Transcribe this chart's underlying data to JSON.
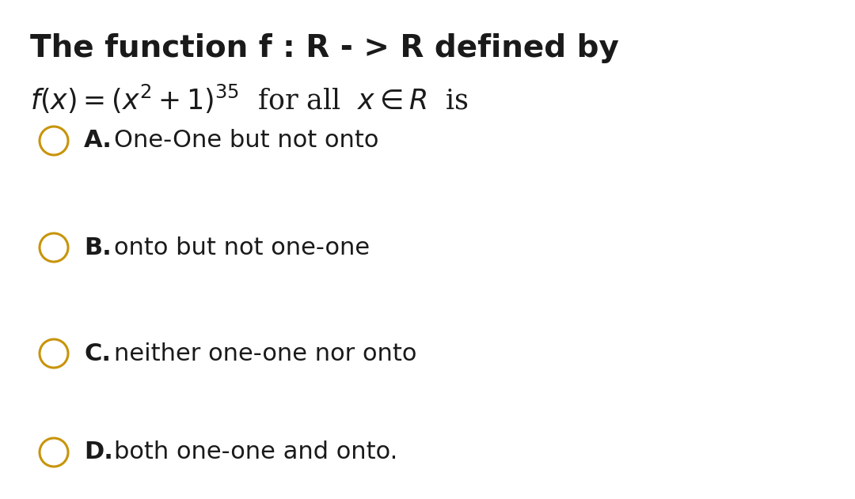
{
  "background_color": "#ffffff",
  "title_line1": "The function f : R - > R defined by",
  "options": [
    {
      "label": "A.",
      "text": "One-One but not onto"
    },
    {
      "label": "B.",
      "text": "onto but not one-one"
    },
    {
      "label": "C.",
      "text": "neither one-one nor onto"
    },
    {
      "label": "D.",
      "text": "both one-one and onto."
    }
  ],
  "circle_color": "#c8940a",
  "circle_linewidth": 2.2,
  "title_fontsize": 28,
  "formula_fontsize": 25,
  "option_fontsize": 22,
  "label_fontsize": 22,
  "text_color": "#1a1a1a"
}
